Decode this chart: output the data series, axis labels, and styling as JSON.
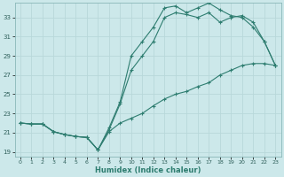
{
  "xlabel": "Humidex (Indice chaleur)",
  "bg_color": "#cce8ea",
  "grid_color": "#b8d8da",
  "line_color": "#2e7d70",
  "xlim": [
    -0.5,
    23.5
  ],
  "ylim": [
    18.5,
    34.5
  ],
  "yticks": [
    19,
    21,
    23,
    25,
    27,
    29,
    31,
    33
  ],
  "xticks": [
    0,
    1,
    2,
    3,
    4,
    5,
    6,
    7,
    8,
    9,
    10,
    11,
    12,
    13,
    14,
    15,
    16,
    17,
    18,
    19,
    20,
    21,
    22,
    23
  ],
  "line_bottom_x": [
    0,
    1,
    2,
    3,
    4,
    5,
    6,
    7,
    8,
    9,
    10,
    11,
    12,
    13,
    14,
    15,
    16,
    17,
    18,
    19,
    20,
    21,
    22,
    23
  ],
  "line_bottom_y": [
    22.0,
    21.9,
    21.9,
    21.1,
    20.8,
    20.6,
    20.5,
    19.2,
    21.1,
    22.0,
    22.5,
    23.0,
    23.8,
    24.5,
    25.0,
    25.3,
    25.8,
    26.2,
    27.0,
    27.5,
    28.0,
    28.2,
    28.2,
    28.0
  ],
  "line_mid_x": [
    0,
    1,
    2,
    3,
    4,
    5,
    6,
    7,
    8,
    9,
    10,
    11,
    12,
    13,
    14,
    15,
    16,
    17,
    18,
    19,
    20,
    21,
    22,
    23
  ],
  "line_mid_y": [
    22.0,
    21.9,
    21.9,
    21.1,
    20.8,
    20.6,
    20.5,
    19.2,
    21.3,
    24.0,
    27.5,
    29.0,
    30.5,
    33.0,
    33.5,
    33.3,
    33.0,
    33.5,
    32.5,
    33.0,
    33.2,
    32.5,
    30.5,
    28.0
  ],
  "line_top_x": [
    0,
    1,
    2,
    3,
    4,
    5,
    6,
    7,
    8,
    9,
    10,
    11,
    12,
    13,
    14,
    15,
    16,
    17,
    18,
    19,
    20,
    21,
    22,
    23
  ],
  "line_top_y": [
    22.0,
    21.9,
    21.9,
    21.1,
    20.8,
    20.6,
    20.5,
    19.2,
    21.5,
    24.2,
    29.0,
    30.5,
    32.0,
    34.0,
    34.2,
    33.5,
    34.0,
    34.5,
    33.8,
    33.2,
    33.0,
    32.0,
    30.5,
    28.0
  ]
}
